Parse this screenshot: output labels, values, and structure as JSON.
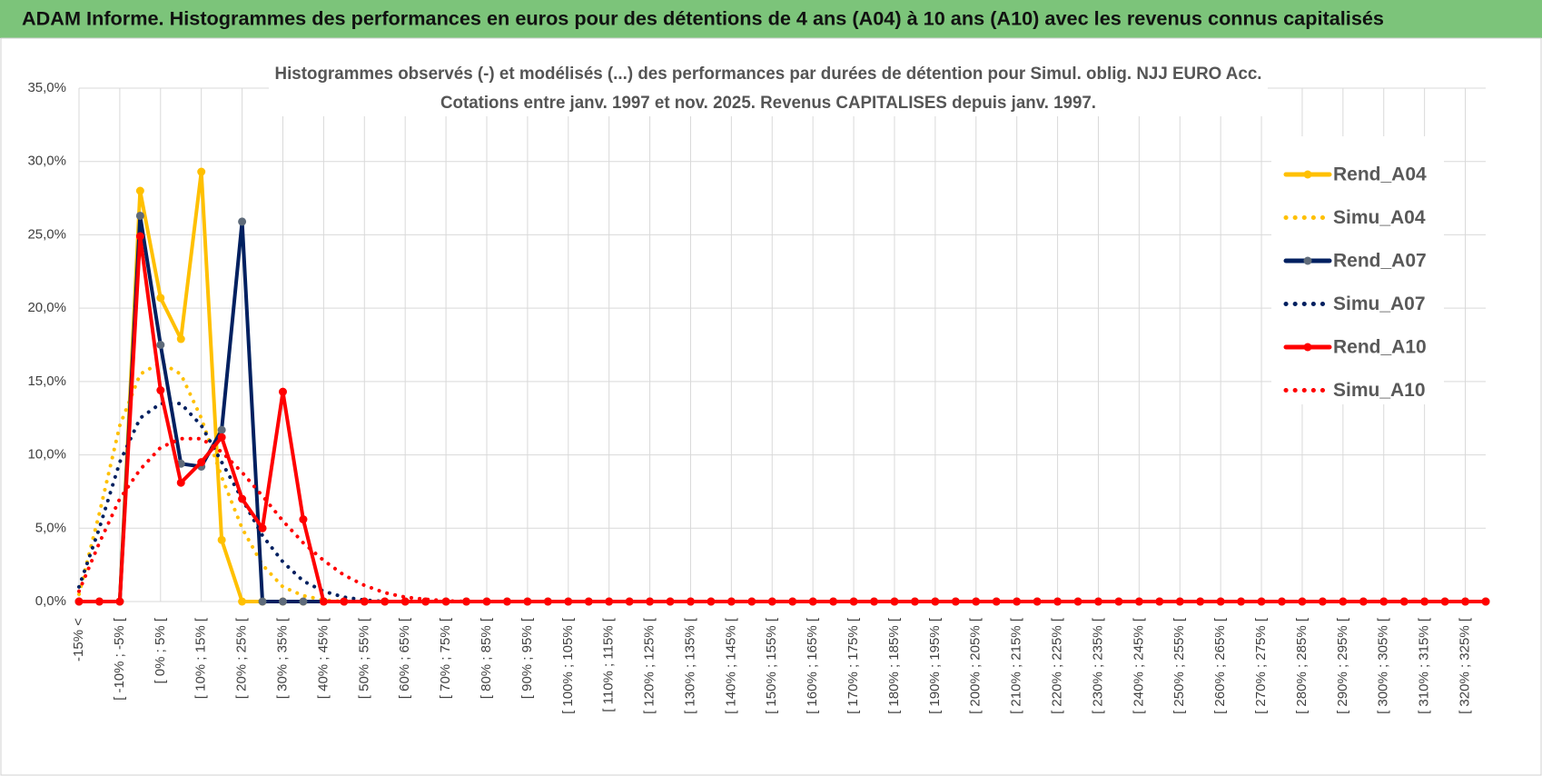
{
  "chart_data": {
    "type": "line",
    "title": "ADAM Informe. Histogrammes des performances en euros pour des détentions de 4 ans (A04) à 10 ans (A10) avec les revenus connus capitalisés",
    "subtitle": [
      "Histogrammes observés (-) et modélisés (...) des performances par durées de détention pour Simul. oblig. NJJ EURO Acc.",
      "Cotations entre janv. 1997 et nov. 2025. Revenus CAPITALISES depuis janv. 1997."
    ],
    "categories": [
      "-15% <",
      null,
      "[ -10% ; -5% [",
      null,
      "[ 0% ; 5% [",
      null,
      "[ 10% ; 15% [",
      null,
      "[ 20% ; 25% [",
      null,
      "[ 30% ; 35% [",
      null,
      "[ 40% ; 45% [",
      null,
      "[ 50% ; 55% [",
      null,
      "[ 60% ; 65% [",
      null,
      "[ 70% ; 75% [",
      null,
      "[ 80% ; 85% [",
      null,
      "[ 90% ; 95% [",
      null,
      "[ 100% ; 105% [",
      null,
      "[ 110% ; 115% [",
      null,
      "[ 120% ; 125% [",
      null,
      "[ 130% ; 135% [",
      null,
      "[ 140% ; 145% [",
      null,
      "[ 150% ; 155% [",
      null,
      "[ 160% ; 165% [",
      null,
      "[ 170% ; 175% [",
      null,
      "[ 180% ; 185% [",
      null,
      "[ 190% ; 195% [",
      null,
      "[ 200% ; 205% [",
      null,
      "[ 210% ; 215% [",
      null,
      "[ 220% ; 225% [",
      null,
      "[ 230% ; 235% [",
      null,
      "[ 240% ; 245% [",
      null,
      "[ 250% ; 255% [",
      null,
      "[ 260% ; 265% [",
      null,
      "[ 270% ; 275% [",
      null,
      "[ 280% ; 285% [",
      null,
      "[ 290% ; 295% [",
      null,
      "[ 300% ; 305% [",
      null,
      "[ 310% ; 315% [",
      null,
      "[ 320% ; 325% [",
      null
    ],
    "series": [
      {
        "name": "Rend_A04",
        "color": "#ffc000",
        "marker_color": "#ffc000",
        "dash": "solid",
        "values": [
          0,
          0,
          0,
          28.0,
          20.7,
          17.9,
          29.3,
          4.2,
          0,
          0,
          0,
          0,
          0,
          0,
          0,
          0,
          0,
          0,
          0,
          0,
          0,
          0,
          0,
          0,
          0,
          0,
          0,
          0,
          0,
          0,
          0,
          0,
          0,
          0,
          0,
          0,
          0,
          0,
          0,
          0,
          0,
          0,
          0,
          0,
          0,
          0,
          0,
          0,
          0,
          0,
          0,
          0,
          0,
          0,
          0,
          0,
          0,
          0,
          0,
          0,
          0,
          0,
          0,
          0,
          0,
          0,
          0,
          0,
          0,
          0
        ]
      },
      {
        "name": "Simu_A04",
        "color": "#ffc000",
        "dash": "dotted",
        "values": [
          0.5,
          6,
          12,
          15.5,
          16.3,
          15.5,
          12.5,
          8.5,
          5,
          2.5,
          1,
          0.4,
          0.1,
          0,
          0,
          0,
          0,
          0,
          0,
          0,
          0,
          0,
          0,
          0,
          0,
          0,
          0,
          0,
          0,
          0,
          0,
          0,
          0,
          0,
          0,
          0,
          0,
          0,
          0,
          0,
          0,
          0,
          0,
          0,
          0,
          0,
          0,
          0,
          0,
          0,
          0,
          0,
          0,
          0,
          0,
          0,
          0,
          0,
          0,
          0,
          0,
          0,
          0,
          0,
          0,
          0,
          0,
          0,
          0,
          0
        ]
      },
      {
        "name": "Rend_A07",
        "color": "#002060",
        "marker_color": "#5f6b7a",
        "dash": "solid",
        "values": [
          0,
          0,
          0,
          26.3,
          17.5,
          9.4,
          9.2,
          11.7,
          25.9,
          0,
          0,
          0,
          0,
          0,
          0,
          0,
          0,
          0,
          0,
          0,
          0,
          0,
          0,
          0,
          0,
          0,
          0,
          0,
          0,
          0,
          0,
          0,
          0,
          0,
          0,
          0,
          0,
          0,
          0,
          0,
          0,
          0,
          0,
          0,
          0,
          0,
          0,
          0,
          0,
          0,
          0,
          0,
          0,
          0,
          0,
          0,
          0,
          0,
          0,
          0,
          0,
          0,
          0,
          0,
          0,
          0,
          0,
          0,
          0,
          0
        ]
      },
      {
        "name": "Simu_A07",
        "color": "#002060",
        "dash": "dotted",
        "values": [
          1,
          5,
          9.5,
          12.5,
          13.5,
          13.5,
          12,
          9.5,
          7,
          4.5,
          2.7,
          1.4,
          0.7,
          0.3,
          0.1,
          0,
          0,
          0,
          0,
          0,
          0,
          0,
          0,
          0,
          0,
          0,
          0,
          0,
          0,
          0,
          0,
          0,
          0,
          0,
          0,
          0,
          0,
          0,
          0,
          0,
          0,
          0,
          0,
          0,
          0,
          0,
          0,
          0,
          0,
          0,
          0,
          0,
          0,
          0,
          0,
          0,
          0,
          0,
          0,
          0,
          0,
          0,
          0,
          0,
          0,
          0,
          0,
          0,
          0,
          0
        ]
      },
      {
        "name": "Rend_A10",
        "color": "#ff0000",
        "marker_color": "#ff0000",
        "dash": "solid",
        "values": [
          0,
          0,
          0,
          24.9,
          14.4,
          8.1,
          9.5,
          11.2,
          7.0,
          5.0,
          14.3,
          5.6,
          0,
          0,
          0,
          0,
          0,
          0,
          0,
          0,
          0,
          0,
          0,
          0,
          0,
          0,
          0,
          0,
          0,
          0,
          0,
          0,
          0,
          0,
          0,
          0,
          0,
          0,
          0,
          0,
          0,
          0,
          0,
          0,
          0,
          0,
          0,
          0,
          0,
          0,
          0,
          0,
          0,
          0,
          0,
          0,
          0,
          0,
          0,
          0,
          0,
          0,
          0,
          0,
          0,
          0,
          0,
          0,
          0,
          0
        ]
      },
      {
        "name": "Simu_A10",
        "color": "#ff0000",
        "dash": "dotted",
        "values": [
          0.7,
          4,
          7,
          9,
          10.5,
          11.1,
          11.1,
          10.2,
          8.8,
          7.2,
          5.5,
          4,
          2.8,
          1.8,
          1.1,
          0.6,
          0.3,
          0.15,
          0.05,
          0,
          0,
          0,
          0,
          0,
          0,
          0,
          0,
          0,
          0,
          0,
          0,
          0,
          0,
          0,
          0,
          0,
          0,
          0,
          0,
          0,
          0,
          0,
          0,
          0,
          0,
          0,
          0,
          0,
          0,
          0,
          0,
          0,
          0,
          0,
          0,
          0,
          0,
          0,
          0,
          0,
          0,
          0,
          0,
          0,
          0,
          0,
          0,
          0,
          0,
          0
        ]
      }
    ],
    "ylim": [
      0,
      35
    ],
    "yticks": [
      {
        "value": 0,
        "label": "0,0%"
      },
      {
        "value": 5,
        "label": "5,0%"
      },
      {
        "value": 10,
        "label": "10,0%"
      },
      {
        "value": 15,
        "label": "15,0%"
      },
      {
        "value": 20,
        "label": "20,0%"
      },
      {
        "value": 25,
        "label": "25,0%"
      },
      {
        "value": 30,
        "label": "30,0%"
      },
      {
        "value": 35,
        "label": "35,0%"
      }
    ],
    "grid": true,
    "legend": "right"
  }
}
